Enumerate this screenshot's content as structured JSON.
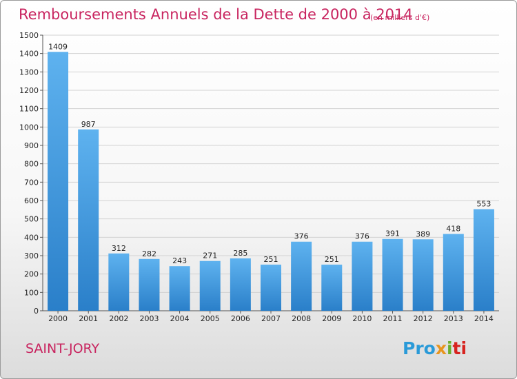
{
  "header": {
    "title": "Remboursements Annuels de la Dette de 2000 à 2014",
    "subtitle": "(en milliers d'€)"
  },
  "footer": {
    "city": "SAINT-JORY",
    "logo": [
      "Pro",
      "x",
      "i",
      "ti"
    ]
  },
  "colors": {
    "bar_top": "#5eb2ef",
    "bar_bottom": "#2a7fc9",
    "title": "#c8245f",
    "grid": "#d2d2d2"
  },
  "chart_data": {
    "type": "bar",
    "title": "Remboursements Annuels de la Dette de 2000 à 2014",
    "subtitle": "(en milliers d'€)",
    "xlabel": "",
    "ylabel": "",
    "categories": [
      "2000",
      "2001",
      "2002",
      "2003",
      "2004",
      "2005",
      "2006",
      "2007",
      "2008",
      "2009",
      "2010",
      "2011",
      "2012",
      "2013",
      "2014"
    ],
    "values": [
      1409,
      987,
      312,
      282,
      243,
      271,
      285,
      251,
      376,
      251,
      376,
      391,
      389,
      418,
      553
    ],
    "ylim": [
      0,
      1500
    ],
    "yticks": [
      0,
      100,
      200,
      300,
      400,
      500,
      600,
      700,
      800,
      900,
      1000,
      1100,
      1200,
      1300,
      1400,
      1500
    ],
    "grid": true,
    "legend": "none"
  }
}
